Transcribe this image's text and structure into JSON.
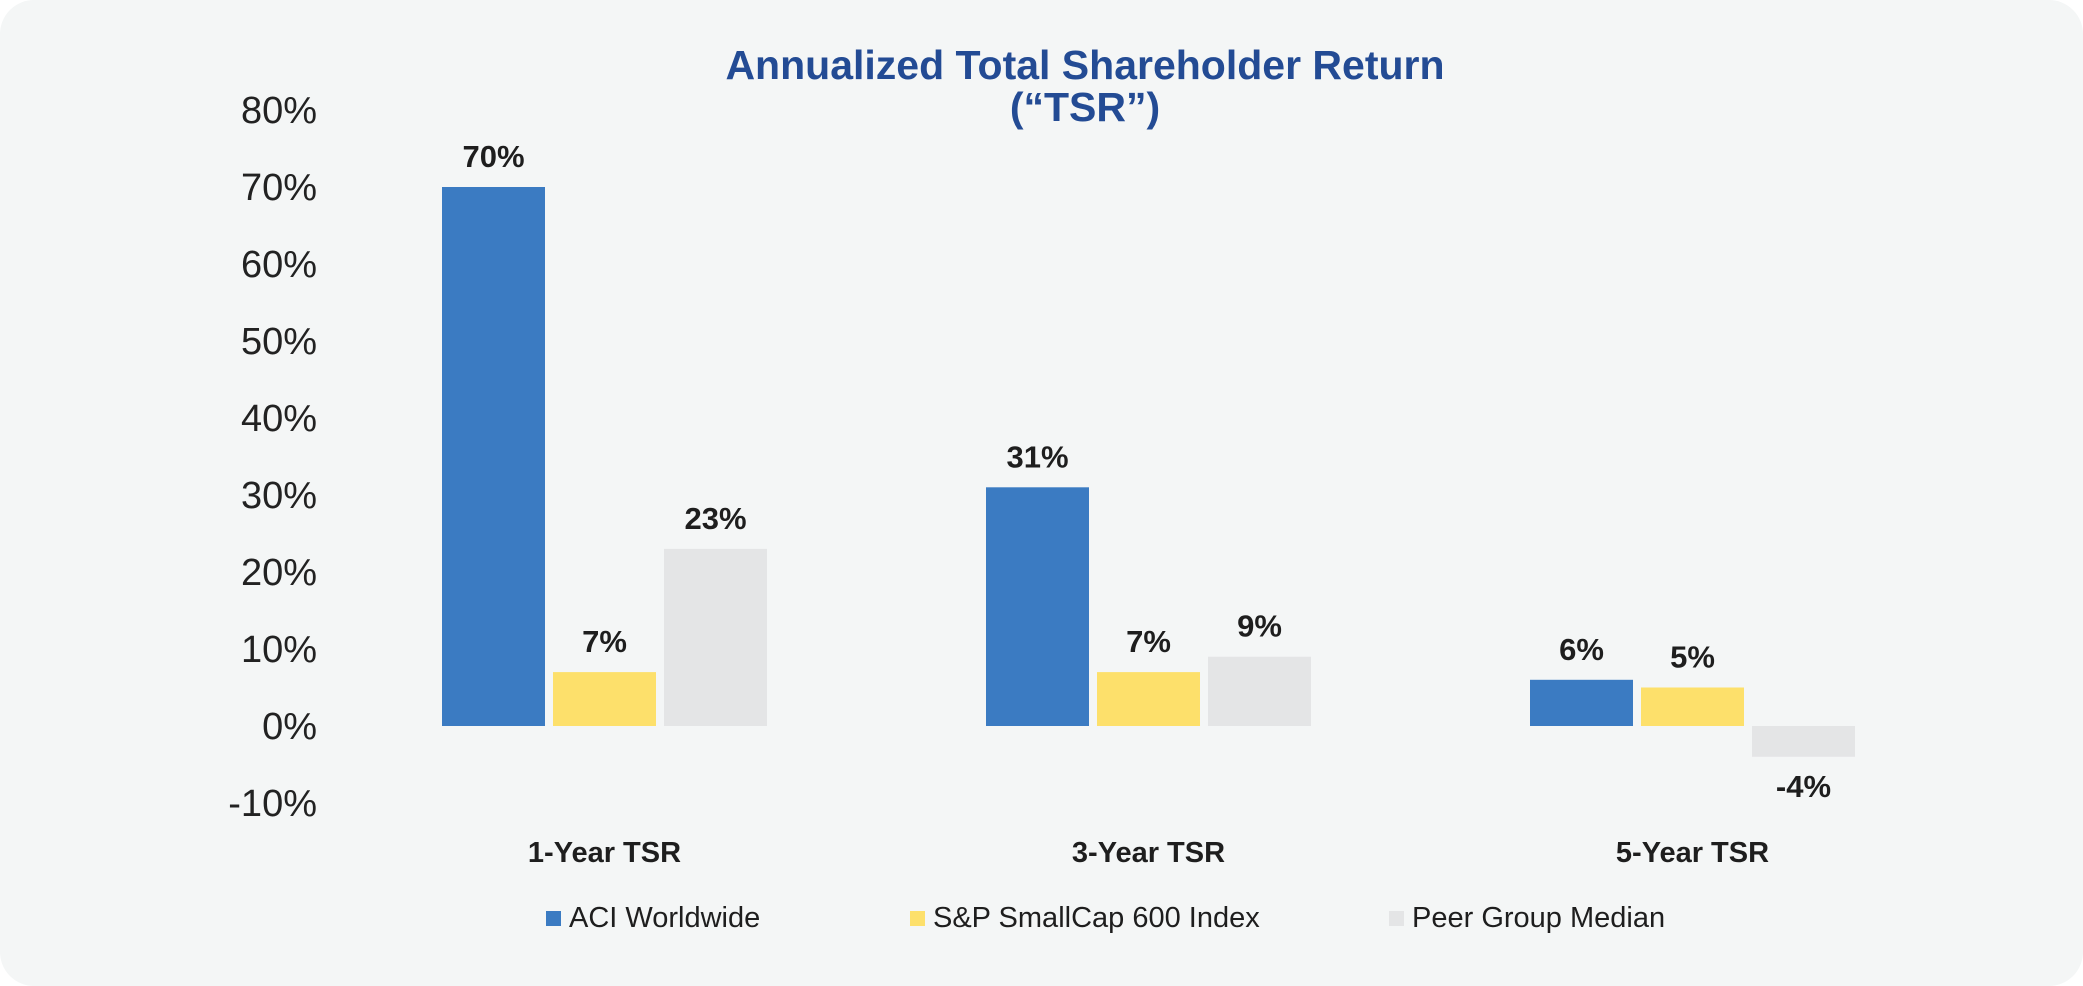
{
  "chart_data": {
    "type": "bar",
    "title": "Annualized Total Shareholder Return",
    "subtitle": "(“TSR”)",
    "categories": [
      "1-Year TSR",
      "3-Year TSR",
      "5-Year TSR"
    ],
    "series": [
      {
        "name": "ACI Worldwide",
        "values": [
          70,
          31,
          6
        ],
        "color": "#3b7bc2"
      },
      {
        "name": "S&P SmallCap 600 Index",
        "values": [
          7,
          7,
          5
        ],
        "color": "#fde06b"
      },
      {
        "name": "Peer Group Median",
        "values": [
          23,
          9,
          -4
        ],
        "color": "#e4e5e6"
      }
    ],
    "ylim": [
      -10,
      80
    ],
    "yticks": [
      80,
      70,
      60,
      50,
      40,
      30,
      20,
      10,
      0,
      -10
    ],
    "ytick_labels": [
      "80%",
      "70%",
      "60%",
      "50%",
      "40%",
      "30%",
      "20%",
      "10%",
      "0%",
      "-10%"
    ],
    "data_labels": [
      [
        "70%",
        "31%",
        "6%"
      ],
      [
        "7%",
        "7%",
        "5%"
      ],
      [
        "23%",
        "9%",
        "-4%"
      ]
    ],
    "xlabel": "",
    "ylabel": "",
    "grid": false,
    "legend": "bottom-center",
    "title_color": "#234b94"
  }
}
